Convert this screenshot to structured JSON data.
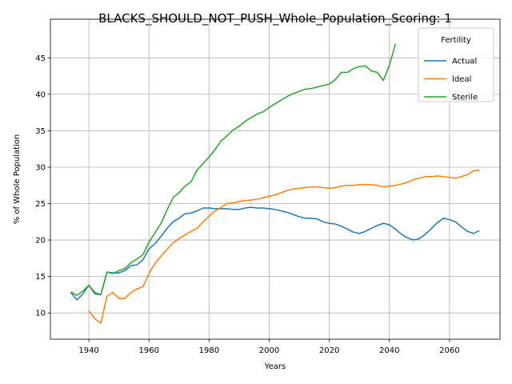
{
  "chart_data": {
    "type": "line",
    "title": "BLACKS_SHOULD_NOT_PUSH_Whole_Population_Scoring: 1",
    "xlabel": "Years",
    "ylabel": "% of Whole Population",
    "legend_title": "Fertility",
    "legend_loc": "upper right",
    "grid": true,
    "xlim": [
      1927.2,
      2076.8
    ],
    "xticks": [
      1940,
      1960,
      1980,
      2000,
      2020,
      2040,
      2060
    ],
    "ylim": [
      6.4,
      50.3
    ],
    "yticks": [
      10,
      15,
      20,
      25,
      30,
      35,
      40,
      45
    ],
    "x": [
      1934,
      1936,
      1938,
      1940,
      1942,
      1944,
      1946,
      1948,
      1950,
      1952,
      1954,
      1956,
      1958,
      1960,
      1962,
      1964,
      1966,
      1968,
      1970,
      1972,
      1974,
      1976,
      1978,
      1980,
      1982,
      1984,
      1986,
      1988,
      1990,
      1992,
      1994,
      1996,
      1998,
      2000,
      2002,
      2004,
      2006,
      2008,
      2010,
      2012,
      2014,
      2016,
      2018,
      2020,
      2022,
      2024,
      2026,
      2028,
      2030,
      2032,
      2034,
      2036,
      2038,
      2040,
      2042,
      2044,
      2046,
      2048,
      2050,
      2052,
      2054,
      2056,
      2058,
      2060,
      2062,
      2064,
      2066,
      2068,
      2070
    ],
    "series": [
      {
        "name": "Actual",
        "color": "#1f77b4",
        "values": [
          12.8,
          11.8,
          12.6,
          13.8,
          12.6,
          12.5,
          15.6,
          15.5,
          15.5,
          15.8,
          16.5,
          16.6,
          17.3,
          18.8,
          19.5,
          20.5,
          21.6,
          22.5,
          23.0,
          23.6,
          23.7,
          24.0,
          24.4,
          24.4,
          24.3,
          24.3,
          24.3,
          24.2,
          24.2,
          24.4,
          24.5,
          24.4,
          24.4,
          24.3,
          24.2,
          24.0,
          23.8,
          23.5,
          23.2,
          23.0,
          23.0,
          22.9,
          22.5,
          22.3,
          22.2,
          21.9,
          21.5,
          21.1,
          20.9,
          21.2,
          21.6,
          22.0,
          22.3,
          22.1,
          21.5,
          20.8,
          20.3,
          20.0,
          20.2,
          20.8,
          21.6,
          22.4,
          23.0,
          22.8,
          22.5,
          21.8,
          21.2,
          20.9,
          21.3
        ]
      },
      {
        "name": "Ideal",
        "color": "#ff7f0e",
        "values": [
          null,
          null,
          null,
          10.3,
          9.2,
          8.6,
          12.3,
          12.8,
          12.0,
          12.0,
          12.8,
          13.3,
          13.6,
          15.4,
          16.8,
          17.8,
          18.7,
          19.6,
          20.2,
          20.7,
          21.2,
          21.6,
          22.5,
          23.3,
          24.0,
          24.5,
          25.0,
          25.1,
          25.3,
          25.4,
          25.5,
          25.6,
          25.8,
          26.0,
          26.2,
          26.5,
          26.8,
          27.0,
          27.1,
          27.2,
          27.3,
          27.3,
          27.2,
          27.1,
          27.2,
          27.4,
          27.5,
          27.5,
          27.6,
          27.6,
          27.6,
          27.5,
          27.3,
          27.4,
          27.5,
          27.7,
          27.9,
          28.3,
          28.5,
          28.7,
          28.7,
          28.8,
          28.7,
          28.6,
          28.5,
          28.7,
          29.0,
          29.5,
          29.6
        ]
      },
      {
        "name": "Sterile",
        "color": "#2ca02c",
        "values": [
          12.9,
          12.4,
          13.0,
          13.8,
          12.8,
          12.5,
          15.6,
          15.4,
          15.8,
          16.1,
          16.9,
          17.4,
          18.0,
          19.7,
          21.0,
          22.3,
          24.1,
          25.8,
          26.5,
          27.4,
          28.0,
          29.6,
          30.5,
          31.4,
          32.4,
          33.6,
          34.3,
          35.1,
          35.6,
          36.3,
          36.8,
          37.3,
          37.6,
          38.2,
          38.7,
          39.2,
          39.7,
          40.1,
          40.4,
          40.7,
          40.8,
          41.0,
          41.2,
          41.4,
          42.0,
          43.0,
          43.0,
          43.5,
          43.8,
          43.9,
          43.2,
          43.0,
          41.9,
          44.0,
          46.9,
          null,
          null,
          null,
          null,
          null,
          null,
          null,
          null,
          null,
          null,
          null,
          null,
          null,
          null
        ]
      }
    ]
  }
}
